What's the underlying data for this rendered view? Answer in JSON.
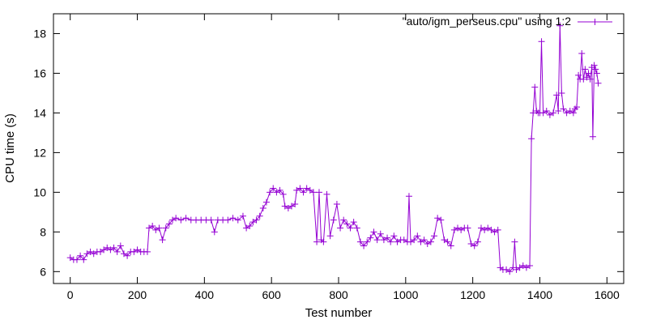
{
  "chart_data": {
    "type": "line",
    "marker": "+",
    "xlabel": "Test number",
    "ylabel": "CPU time (s)",
    "xlim": [
      -50,
      1650
    ],
    "ylim": [
      5.4,
      19
    ],
    "xticks": [
      0,
      200,
      400,
      600,
      800,
      1000,
      1200,
      1400,
      1600
    ],
    "yticks": [
      6,
      8,
      10,
      12,
      14,
      16,
      18
    ],
    "grid": false,
    "legend_position": "top-right",
    "color": "#9400d3",
    "series": [
      {
        "name": "\"auto/igm_perseus.cpu\" using 1:2",
        "points": [
          [
            0,
            6.7
          ],
          [
            10,
            6.6
          ],
          [
            20,
            6.6
          ],
          [
            30,
            6.8
          ],
          [
            40,
            6.6
          ],
          [
            50,
            6.9
          ],
          [
            60,
            7.0
          ],
          [
            70,
            6.9
          ],
          [
            80,
            7.0
          ],
          [
            90,
            7.0
          ],
          [
            100,
            7.1
          ],
          [
            110,
            7.2
          ],
          [
            120,
            7.1
          ],
          [
            130,
            7.2
          ],
          [
            140,
            7.0
          ],
          [
            150,
            7.3
          ],
          [
            160,
            6.9
          ],
          [
            170,
            6.8
          ],
          [
            180,
            7.0
          ],
          [
            190,
            7.0
          ],
          [
            200,
            7.1
          ],
          [
            210,
            7.0
          ],
          [
            220,
            7.0
          ],
          [
            230,
            7.0
          ],
          [
            235,
            8.2
          ],
          [
            245,
            8.3
          ],
          [
            255,
            8.1
          ],
          [
            265,
            8.2
          ],
          [
            275,
            7.6
          ],
          [
            285,
            8.2
          ],
          [
            295,
            8.4
          ],
          [
            305,
            8.6
          ],
          [
            315,
            8.7
          ],
          [
            330,
            8.6
          ],
          [
            345,
            8.7
          ],
          [
            360,
            8.6
          ],
          [
            375,
            8.6
          ],
          [
            390,
            8.6
          ],
          [
            405,
            8.6
          ],
          [
            420,
            8.6
          ],
          [
            430,
            8.0
          ],
          [
            440,
            8.6
          ],
          [
            455,
            8.6
          ],
          [
            470,
            8.6
          ],
          [
            485,
            8.7
          ],
          [
            500,
            8.6
          ],
          [
            515,
            8.8
          ],
          [
            525,
            8.2
          ],
          [
            535,
            8.3
          ],
          [
            545,
            8.5
          ],
          [
            555,
            8.6
          ],
          [
            565,
            8.8
          ],
          [
            575,
            9.2
          ],
          [
            585,
            9.5
          ],
          [
            595,
            10.0
          ],
          [
            605,
            10.2
          ],
          [
            615,
            10.0
          ],
          [
            625,
            10.1
          ],
          [
            635,
            9.9
          ],
          [
            640,
            9.3
          ],
          [
            650,
            9.2
          ],
          [
            660,
            9.3
          ],
          [
            670,
            9.4
          ],
          [
            675,
            10.1
          ],
          [
            685,
            10.2
          ],
          [
            695,
            10.0
          ],
          [
            705,
            10.2
          ],
          [
            715,
            10.1
          ],
          [
            725,
            10.0
          ],
          [
            735,
            7.5
          ],
          [
            742,
            10.0
          ],
          [
            748,
            7.6
          ],
          [
            755,
            7.5
          ],
          [
            765,
            9.9
          ],
          [
            775,
            7.8
          ],
          [
            785,
            8.6
          ],
          [
            795,
            9.4
          ],
          [
            805,
            8.2
          ],
          [
            815,
            8.6
          ],
          [
            825,
            8.4
          ],
          [
            835,
            8.2
          ],
          [
            845,
            8.5
          ],
          [
            855,
            8.2
          ],
          [
            865,
            7.5
          ],
          [
            875,
            7.3
          ],
          [
            885,
            7.5
          ],
          [
            895,
            7.7
          ],
          [
            905,
            8.0
          ],
          [
            915,
            7.6
          ],
          [
            925,
            7.9
          ],
          [
            935,
            7.6
          ],
          [
            945,
            7.7
          ],
          [
            955,
            7.5
          ],
          [
            965,
            7.8
          ],
          [
            975,
            7.5
          ],
          [
            985,
            7.6
          ],
          [
            995,
            7.6
          ],
          [
            1005,
            7.5
          ],
          [
            1010,
            9.8
          ],
          [
            1015,
            7.5
          ],
          [
            1025,
            7.6
          ],
          [
            1035,
            7.8
          ],
          [
            1045,
            7.5
          ],
          [
            1055,
            7.6
          ],
          [
            1065,
            7.4
          ],
          [
            1075,
            7.5
          ],
          [
            1085,
            7.8
          ],
          [
            1095,
            8.7
          ],
          [
            1105,
            8.6
          ],
          [
            1115,
            7.6
          ],
          [
            1125,
            7.5
          ],
          [
            1135,
            7.3
          ],
          [
            1145,
            8.1
          ],
          [
            1155,
            8.2
          ],
          [
            1165,
            8.1
          ],
          [
            1175,
            8.2
          ],
          [
            1185,
            8.2
          ],
          [
            1195,
            7.4
          ],
          [
            1205,
            7.3
          ],
          [
            1215,
            7.5
          ],
          [
            1225,
            8.2
          ],
          [
            1235,
            8.1
          ],
          [
            1245,
            8.2
          ],
          [
            1255,
            8.1
          ],
          [
            1265,
            8.0
          ],
          [
            1275,
            8.1
          ],
          [
            1282,
            6.2
          ],
          [
            1290,
            6.1
          ],
          [
            1300,
            6.1
          ],
          [
            1310,
            6.0
          ],
          [
            1320,
            6.2
          ],
          [
            1325,
            7.5
          ],
          [
            1330,
            6.1
          ],
          [
            1340,
            6.2
          ],
          [
            1350,
            6.3
          ],
          [
            1360,
            6.2
          ],
          [
            1370,
            6.3
          ],
          [
            1375,
            12.7
          ],
          [
            1380,
            14.0
          ],
          [
            1385,
            15.3
          ],
          [
            1390,
            14.1
          ],
          [
            1395,
            14.0
          ],
          [
            1400,
            14.0
          ],
          [
            1405,
            17.6
          ],
          [
            1410,
            14.0
          ],
          [
            1420,
            14.1
          ],
          [
            1430,
            13.9
          ],
          [
            1440,
            14.0
          ],
          [
            1450,
            14.9
          ],
          [
            1455,
            14.1
          ],
          [
            1460,
            18.4
          ],
          [
            1465,
            15.0
          ],
          [
            1470,
            14.2
          ],
          [
            1480,
            14.0
          ],
          [
            1490,
            14.1
          ],
          [
            1500,
            14.0
          ],
          [
            1505,
            14.2
          ],
          [
            1510,
            14.3
          ],
          [
            1515,
            15.9
          ],
          [
            1520,
            15.7
          ],
          [
            1525,
            17.0
          ],
          [
            1530,
            15.7
          ],
          [
            1535,
            16.2
          ],
          [
            1540,
            15.8
          ],
          [
            1545,
            16.0
          ],
          [
            1550,
            15.7
          ],
          [
            1555,
            16.3
          ],
          [
            1558,
            12.8
          ],
          [
            1562,
            16.4
          ],
          [
            1566,
            16.2
          ],
          [
            1570,
            16.0
          ],
          [
            1574,
            15.5
          ]
        ]
      }
    ]
  }
}
